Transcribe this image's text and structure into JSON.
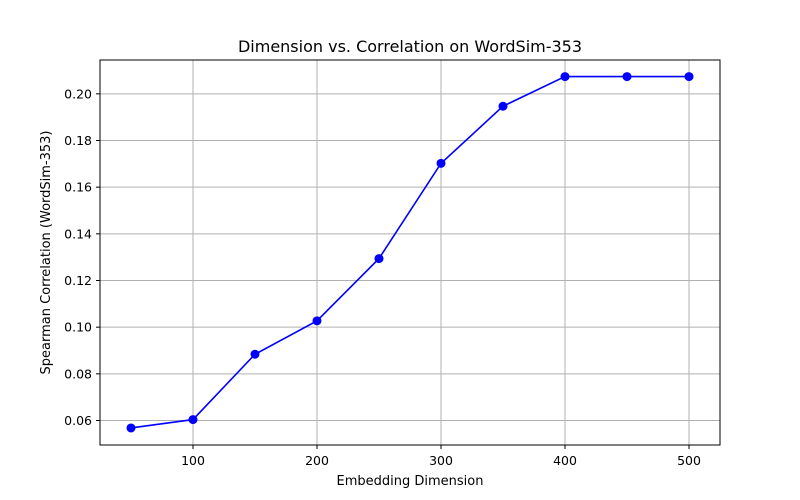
{
  "chart_data": {
    "type": "line",
    "title": "Dimension vs. Correlation on WordSim-353",
    "xlabel": "Embedding Dimension",
    "ylabel": "Spearman Correlation (WordSim-353)",
    "x": [
      50,
      100,
      150,
      200,
      250,
      300,
      350,
      400,
      450,
      500
    ],
    "series": [
      {
        "values": [
          0.0568,
          0.0604,
          0.0884,
          0.1027,
          0.1294,
          0.1702,
          0.1947,
          0.2074,
          0.2074,
          0.2074
        ],
        "color": "#0000ff",
        "marker": "circle"
      }
    ],
    "xlim": [
      25,
      525
    ],
    "ylim": [
      0.0495,
      0.2145
    ],
    "xticks": [
      100,
      200,
      300,
      400,
      500
    ],
    "xtick_labels": [
      "100",
      "200",
      "300",
      "400",
      "500"
    ],
    "yticks": [
      0.06,
      0.08,
      0.1,
      0.12,
      0.14,
      0.16,
      0.18,
      0.2
    ],
    "ytick_labels": [
      "0.06",
      "0.08",
      "0.10",
      "0.12",
      "0.14",
      "0.16",
      "0.18",
      "0.20"
    ],
    "grid": true,
    "legend": false
  }
}
